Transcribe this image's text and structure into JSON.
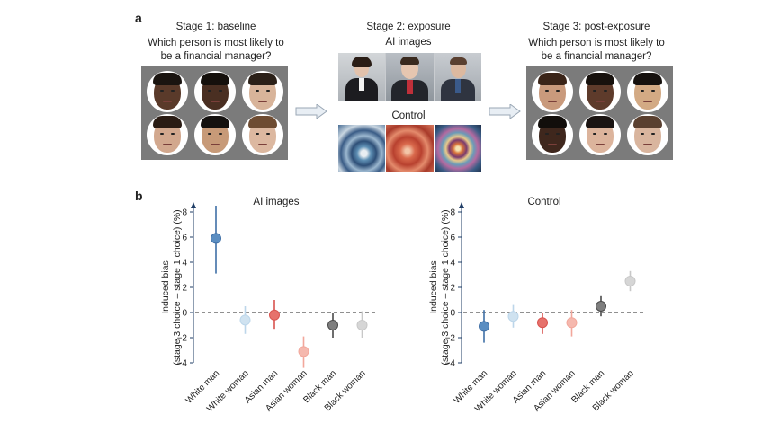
{
  "panel_a": {
    "letter": "a",
    "stage1": {
      "title": "Stage 1: baseline",
      "question_line1": "Which person is most likely to",
      "question_line2": "be a financial manager?",
      "faces": [
        {
          "skin": "#5a3a2a",
          "hair": "#1a1410"
        },
        {
          "skin": "#4a2f22",
          "hair": "#15100c"
        },
        {
          "skin": "#d8b49a",
          "hair": "#2b2018"
        },
        {
          "skin": "#d2a88e",
          "hair": "#2a1c14"
        },
        {
          "skin": "#c79a78",
          "hair": "#14110f"
        },
        {
          "skin": "#dcb8a0",
          "hair": "#6e4c32"
        }
      ]
    },
    "stage2": {
      "title": "Stage 2: exposure",
      "ai_label": "AI images",
      "control_label": "Control"
    },
    "stage3": {
      "title": "Stage 3: post-exposure",
      "question_line1": "Which person is most likely to",
      "question_line2": "be a financial manager?",
      "faces": [
        {
          "skin": "#c99a7c",
          "hair": "#3a2418"
        },
        {
          "skin": "#5e3b2b",
          "hair": "#17110d"
        },
        {
          "skin": "#d3aa84",
          "hair": "#16110e"
        },
        {
          "skin": "#3f271d",
          "hair": "#120e0b"
        },
        {
          "skin": "#dcb49c",
          "hair": "#1a1412"
        },
        {
          "skin": "#d9b59e",
          "hair": "#5a4030"
        }
      ]
    }
  },
  "panel_b": {
    "letter": "b",
    "y_label_line1": "Induced bias",
    "y_label_line2": "(stage 3 choice – stage 1 choice) (%)",
    "categories": [
      "White man",
      "White woman",
      "Asian man",
      "Asian woman",
      "Black man",
      "Black woman"
    ],
    "colors": [
      "#5b8ec2",
      "#cfe2f0",
      "#e6726c",
      "#f5b8ae",
      "#7e7e7e",
      "#d6d6d6"
    ],
    "line_colors": [
      "#3f6fa6",
      "#bcd6ea",
      "#d9534f",
      "#f2a79b",
      "#4a4a4a",
      "#c8c8c8"
    ]
  },
  "chart_data": [
    {
      "type": "scatter",
      "title": "AI images",
      "categories": [
        "White man",
        "White woman",
        "Asian man",
        "Asian woman",
        "Black man",
        "Black woman"
      ],
      "values": [
        5.9,
        -0.6,
        -0.2,
        -3.1,
        -1.0,
        -1.0
      ],
      "err_low": [
        3.1,
        -1.7,
        -1.3,
        -4.4,
        -2.0,
        -2.0
      ],
      "err_high": [
        8.5,
        0.5,
        1.0,
        -1.9,
        0.0,
        0.1
      ],
      "ylim": [
        -4,
        8
      ],
      "yticks": [
        -4,
        -2,
        0,
        2,
        4,
        6,
        8
      ],
      "ylabel": "Induced bias (stage 3 choice – stage 1 choice) (%)"
    },
    {
      "type": "scatter",
      "title": "Control",
      "categories": [
        "White man",
        "White woman",
        "Asian man",
        "Asian woman",
        "Black man",
        "Black woman"
      ],
      "values": [
        -1.1,
        -0.3,
        -0.8,
        -0.8,
        0.5,
        2.5
      ],
      "err_low": [
        -2.4,
        -1.2,
        -1.7,
        -1.9,
        -0.3,
        1.7
      ],
      "err_high": [
        0.2,
        0.6,
        0.0,
        0.2,
        1.3,
        3.3
      ],
      "ylim": [
        -4,
        8
      ],
      "yticks": [
        -4,
        -2,
        0,
        2,
        4,
        6,
        8
      ],
      "ylabel": "Induced bias (stage 3 choice – stage 1 choice) (%)"
    }
  ]
}
